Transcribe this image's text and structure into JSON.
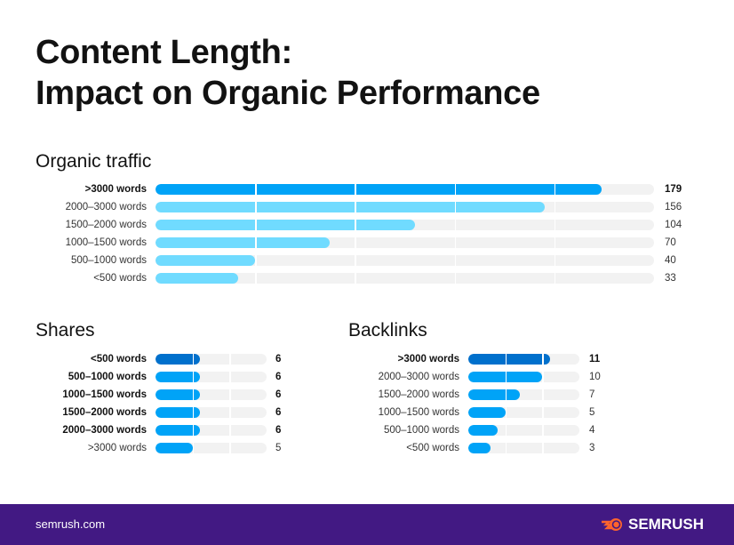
{
  "title_line1": "Content Length:",
  "title_line2": "Impact on Organic Performance",
  "colors": {
    "highlight_dark": "#0070CC",
    "primary": "#00A3F7",
    "light": "#70DBFF",
    "track": "#F2F2F2",
    "footer": "#421983",
    "logo_orange": "#FF642D"
  },
  "chart_data": [
    {
      "type": "bar",
      "orientation": "horizontal",
      "title": "Organic traffic",
      "xlim": [
        0,
        200
      ],
      "grid_interval": 40,
      "categories": [
        ">3000 words",
        "2000–3000 words",
        "1500–2000 words",
        "1000–1500 words",
        "500–1000 words",
        "<500 words"
      ],
      "values": [
        179,
        156,
        104,
        70,
        40,
        33
      ],
      "highlighted": [
        0
      ]
    },
    {
      "type": "bar",
      "orientation": "horizontal",
      "title": "Shares",
      "xlim": [
        0,
        15
      ],
      "grid_interval": 5,
      "categories": [
        "<500 words",
        "500–1000 words",
        "1000–1500 words",
        "1500–2000 words",
        "2000–3000 words",
        ">3000 words"
      ],
      "values": [
        6,
        6,
        6,
        6,
        6,
        5
      ],
      "highlighted": [
        0,
        1,
        2,
        3,
        4
      ]
    },
    {
      "type": "bar",
      "orientation": "horizontal",
      "title": "Backlinks",
      "xlim": [
        0,
        15
      ],
      "grid_interval": 5,
      "categories": [
        ">3000 words",
        "2000–3000 words",
        "1500–2000 words",
        "1000–1500 words",
        "500–1000 words",
        "<500 words"
      ],
      "values": [
        11,
        10,
        7,
        5,
        4,
        3
      ],
      "highlighted": [
        0
      ]
    }
  ],
  "footer": {
    "site": "semrush.com",
    "brand": "SEMRUSH",
    "logo_icon": "semrush-fireball-icon"
  }
}
